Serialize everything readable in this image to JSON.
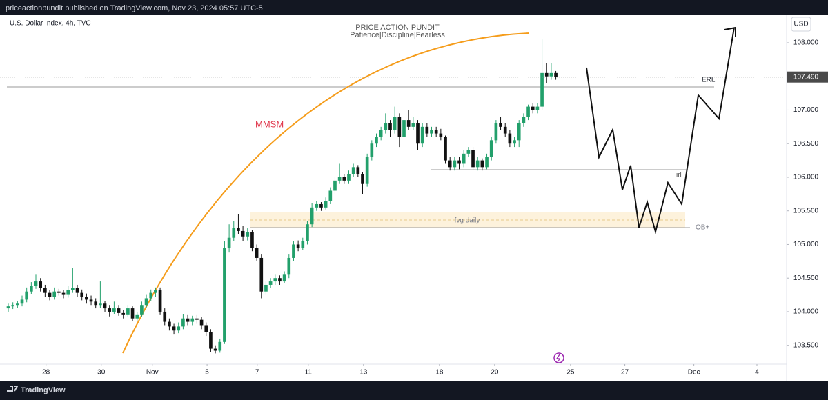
{
  "header": "priceactionpundit published on TradingView.com, Nov 23, 2024 05:57 UTC-5",
  "footer": "TradingView",
  "chart_data": {
    "type": "candlestick",
    "symbol": "U.S. Dollar Index, 4h, TVC",
    "title": "PRICE ACTION PUNDIT",
    "subtitle": "Patience|Discipline|Fearless",
    "currency": "USD",
    "annotations": {
      "mmsm": "MMSM",
      "erl": "ERL",
      "irl": "irl",
      "fvg": "fvg daily",
      "ob": "OB+"
    },
    "up_color": "#22a06b",
    "down_color": "#111111",
    "grid": false,
    "ylim": [
      103.22,
      108.41
    ],
    "yticks": [
      {
        "value": 103.5,
        "label": "103.500"
      },
      {
        "value": 104,
        "label": "104.000"
      },
      {
        "value": 104.5,
        "label": "104.500"
      },
      {
        "value": 105,
        "label": "105.000"
      },
      {
        "value": 105.5,
        "label": "105.500"
      },
      {
        "value": 106,
        "label": "106.000"
      },
      {
        "value": 106.5,
        "label": "106.500"
      },
      {
        "value": 107,
        "label": "107.000"
      },
      {
        "value": 107.5,
        "label": "107.500"
      },
      {
        "value": 108,
        "label": "108.000"
      }
    ],
    "xlim": [
      -1.8,
      168.7
    ],
    "xticks": [
      {
        "value": 8.2,
        "label": "28"
      },
      {
        "value": 20.2,
        "label": "30"
      },
      {
        "value": 31.3,
        "label": "Nov"
      },
      {
        "value": 43.2,
        "label": "5"
      },
      {
        "value": 54.1,
        "label": "7"
      },
      {
        "value": 65.2,
        "label": "11"
      },
      {
        "value": 77.2,
        "label": "13"
      },
      {
        "value": 93.7,
        "label": "18"
      },
      {
        "value": 105.7,
        "label": "20"
      },
      {
        "value": 122.2,
        "label": "25"
      },
      {
        "value": 134.0,
        "label": "27"
      },
      {
        "value": 149.0,
        "label": "Dec"
      },
      {
        "value": 162.7,
        "label": "4"
      }
    ],
    "close_label": "107.490",
    "ohlc": [
      [
        104.05,
        104.12,
        104.0,
        104.08
      ],
      [
        104.08,
        104.14,
        104.04,
        104.1
      ],
      [
        104.1,
        104.16,
        104.06,
        104.12
      ],
      [
        104.12,
        104.24,
        104.08,
        104.18
      ],
      [
        104.18,
        104.36,
        104.14,
        104.3
      ],
      [
        104.3,
        104.44,
        104.26,
        104.38
      ],
      [
        104.38,
        104.55,
        104.34,
        104.45
      ],
      [
        104.45,
        104.5,
        104.3,
        104.35
      ],
      [
        104.35,
        104.4,
        104.22,
        104.28
      ],
      [
        104.28,
        104.32,
        104.17,
        104.22
      ],
      [
        104.22,
        104.36,
        104.18,
        104.3
      ],
      [
        104.3,
        104.34,
        104.24,
        104.28
      ],
      [
        104.28,
        104.32,
        104.2,
        104.25
      ],
      [
        104.25,
        104.38,
        104.21,
        104.32
      ],
      [
        104.32,
        104.65,
        104.28,
        104.35
      ],
      [
        104.35,
        104.4,
        104.22,
        104.28
      ],
      [
        104.28,
        104.33,
        104.17,
        104.22
      ],
      [
        104.22,
        104.27,
        104.12,
        104.18
      ],
      [
        104.18,
        104.24,
        104.1,
        104.15
      ],
      [
        104.15,
        104.2,
        104.05,
        104.1
      ],
      [
        104.1,
        104.45,
        104.06,
        104.12
      ],
      [
        104.12,
        104.16,
        104.0,
        104.05
      ],
      [
        104.05,
        104.1,
        103.93,
        104.0
      ],
      [
        104.0,
        104.15,
        103.96,
        104.05
      ],
      [
        104.05,
        104.1,
        103.94,
        103.98
      ],
      [
        103.98,
        104.03,
        103.9,
        103.95
      ],
      [
        103.95,
        104.1,
        103.92,
        104.05
      ],
      [
        104.05,
        104.08,
        103.86,
        103.9
      ],
      [
        103.9,
        104.0,
        103.86,
        103.95
      ],
      [
        103.95,
        104.15,
        103.92,
        104.1
      ],
      [
        104.1,
        104.25,
        104.06,
        104.2
      ],
      [
        104.2,
        104.33,
        104.16,
        104.28
      ],
      [
        104.28,
        104.36,
        104.22,
        104.32
      ],
      [
        104.32,
        104.36,
        103.95,
        104.0
      ],
      [
        104.0,
        104.05,
        103.8,
        103.85
      ],
      [
        103.85,
        103.9,
        103.72,
        103.78
      ],
      [
        103.78,
        103.82,
        103.66,
        103.72
      ],
      [
        103.72,
        103.84,
        103.68,
        103.78
      ],
      [
        103.78,
        103.96,
        103.74,
        103.9
      ],
      [
        103.9,
        103.95,
        103.8,
        103.85
      ],
      [
        103.85,
        103.94,
        103.8,
        103.9
      ],
      [
        103.9,
        103.95,
        103.82,
        103.88
      ],
      [
        103.88,
        103.92,
        103.74,
        103.8
      ],
      [
        103.8,
        103.84,
        103.64,
        103.7
      ],
      [
        103.7,
        103.74,
        103.4,
        103.45
      ],
      [
        103.45,
        103.5,
        103.38,
        103.42
      ],
      [
        103.42,
        103.6,
        103.39,
        103.55
      ],
      [
        103.55,
        105.05,
        103.52,
        104.95
      ],
      [
        104.95,
        105.3,
        104.88,
        105.1
      ],
      [
        105.1,
        105.35,
        105.05,
        105.25
      ],
      [
        105.25,
        105.45,
        105.15,
        105.2
      ],
      [
        105.2,
        105.28,
        105.05,
        105.12
      ],
      [
        105.12,
        105.24,
        105.06,
        105.18
      ],
      [
        105.18,
        105.22,
        104.9,
        104.95
      ],
      [
        104.95,
        105.0,
        104.75,
        104.8
      ],
      [
        104.8,
        104.85,
        104.2,
        104.3
      ],
      [
        104.3,
        104.45,
        104.25,
        104.4
      ],
      [
        104.4,
        104.5,
        104.35,
        104.45
      ],
      [
        104.45,
        104.55,
        104.4,
        104.5
      ],
      [
        104.5,
        104.54,
        104.4,
        104.45
      ],
      [
        104.45,
        104.6,
        104.42,
        104.55
      ],
      [
        104.55,
        104.85,
        104.5,
        104.8
      ],
      [
        104.8,
        105.05,
        104.75,
        105.0
      ],
      [
        105.0,
        105.06,
        104.9,
        104.95
      ],
      [
        104.95,
        105.1,
        104.92,
        105.05
      ],
      [
        105.05,
        105.35,
        105.0,
        105.3
      ],
      [
        105.3,
        105.62,
        105.26,
        105.55
      ],
      [
        105.55,
        105.65,
        105.5,
        105.6
      ],
      [
        105.6,
        105.63,
        105.5,
        105.55
      ],
      [
        105.55,
        105.7,
        105.52,
        105.65
      ],
      [
        105.65,
        105.85,
        105.6,
        105.8
      ],
      [
        105.8,
        106.0,
        105.75,
        105.95
      ],
      [
        105.95,
        106.2,
        105.9,
        106.0
      ],
      [
        106.0,
        106.05,
        105.9,
        105.95
      ],
      [
        105.95,
        106.1,
        105.9,
        106.05
      ],
      [
        106.05,
        106.2,
        106.0,
        106.15
      ],
      [
        106.15,
        106.18,
        106.0,
        106.05
      ],
      [
        106.05,
        106.08,
        105.75,
        105.9
      ],
      [
        105.9,
        106.35,
        105.86,
        106.3
      ],
      [
        106.3,
        106.55,
        106.25,
        106.5
      ],
      [
        106.5,
        106.65,
        106.45,
        106.6
      ],
      [
        106.6,
        106.75,
        106.55,
        106.7
      ],
      [
        106.7,
        106.95,
        106.65,
        106.8
      ],
      [
        106.8,
        106.85,
        106.6,
        106.7
      ],
      [
        106.7,
        107.05,
        106.65,
        106.9
      ],
      [
        106.9,
        106.95,
        106.45,
        106.6
      ],
      [
        106.6,
        106.95,
        106.55,
        106.85
      ],
      [
        106.85,
        107.0,
        106.7,
        106.75
      ],
      [
        106.75,
        106.9,
        106.7,
        106.8
      ],
      [
        106.8,
        106.85,
        106.4,
        106.5
      ],
      [
        106.5,
        106.8,
        106.45,
        106.75
      ],
      [
        106.75,
        106.8,
        106.6,
        106.65
      ],
      [
        106.65,
        106.75,
        106.6,
        106.7
      ],
      [
        106.7,
        106.75,
        106.6,
        106.65
      ],
      [
        106.65,
        106.72,
        106.55,
        106.6
      ],
      [
        106.6,
        106.62,
        106.2,
        106.25
      ],
      [
        106.25,
        106.3,
        106.1,
        106.15
      ],
      [
        106.15,
        106.3,
        106.1,
        106.25
      ],
      [
        106.25,
        106.3,
        106.12,
        106.2
      ],
      [
        106.2,
        106.4,
        106.15,
        106.35
      ],
      [
        106.35,
        106.45,
        106.3,
        106.4
      ],
      [
        106.4,
        106.45,
        106.1,
        106.15
      ],
      [
        106.15,
        106.3,
        106.1,
        106.25
      ],
      [
        106.25,
        106.28,
        106.1,
        106.15
      ],
      [
        106.15,
        106.35,
        106.12,
        106.3
      ],
      [
        106.3,
        106.6,
        106.25,
        106.55
      ],
      [
        106.55,
        106.85,
        106.5,
        106.8
      ],
      [
        106.8,
        106.9,
        106.7,
        106.75
      ],
      [
        106.75,
        106.8,
        106.6,
        106.65
      ],
      [
        106.65,
        106.7,
        106.45,
        106.5
      ],
      [
        106.5,
        106.6,
        106.45,
        106.55
      ],
      [
        106.55,
        106.85,
        106.45,
        106.8
      ],
      [
        106.8,
        106.95,
        106.75,
        106.9
      ],
      [
        106.9,
        107.08,
        106.85,
        107.05
      ],
      [
        107.05,
        107.1,
        106.95,
        107.0
      ],
      [
        107.0,
        107.1,
        106.95,
        107.05
      ],
      [
        107.05,
        108.05,
        107.0,
        107.55
      ],
      [
        107.55,
        107.7,
        107.4,
        107.5
      ],
      [
        107.5,
        107.7,
        107.45,
        107.55
      ],
      [
        107.55,
        107.58,
        107.45,
        107.49
      ]
    ]
  }
}
